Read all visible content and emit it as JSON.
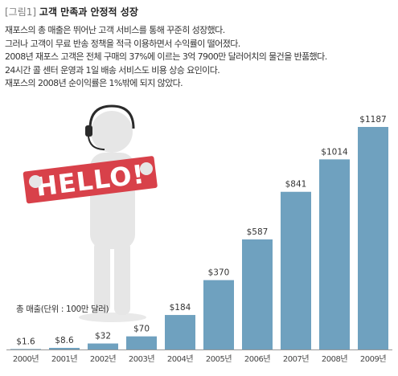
{
  "figure": {
    "tag": "[그림1]",
    "title": "고객 만족과 안정적 성장"
  },
  "description_lines": [
    "재포스의 총 매출은 뛰어난 고객 서비스를 통해 꾸준히 성장했다.",
    "그러나 고객이 무료 반송 정책을 적극 이용하면서 수익률이 떨어졌다.",
    "2008년 재포스 고객은 전체 구매의 37%에 이르는 3억 7900만 달러어치의 물건을 반품했다.",
    "24시간 콜 센터 운영과 1일 배송 서비스도 비용 상승 요인이다.",
    "재포스의 2008년 순이익률은 1%밖에 되지 않았다."
  ],
  "illustration": {
    "sign_text": "HELLO!",
    "figure_color": "#e6e6e6",
    "sign_color": "#d8414a"
  },
  "chart_data": {
    "type": "bar",
    "ylabel": "총 매출(단위 : 100만 달러)",
    "categories": [
      "2000년",
      "2001년",
      "2002년",
      "2003년",
      "2004년",
      "2005년",
      "2006년",
      "2007년",
      "2008년",
      "2009년"
    ],
    "values": [
      1.6,
      8.6,
      32,
      70,
      184,
      370,
      587,
      841,
      1014,
      1187
    ],
    "value_labels": [
      "$1.6",
      "$8.6",
      "$32",
      "$70",
      "$184",
      "$370",
      "$587",
      "$841",
      "$1014",
      "$1187"
    ],
    "ylim": [
      0,
      1187
    ],
    "bar_color": "#6fa1bf",
    "axis_color": "#999999",
    "grid": false
  }
}
